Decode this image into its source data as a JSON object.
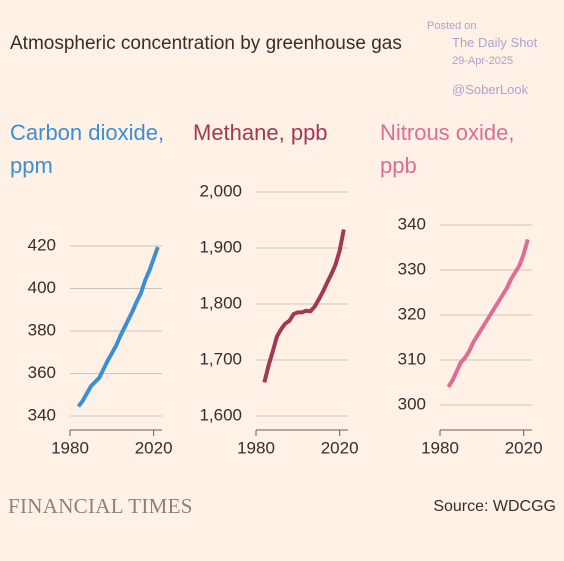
{
  "title": "Atmospheric concentration by greenhouse gas",
  "watermark": {
    "posted": "Posted on",
    "site": "The Daily Shot",
    "date": "29-Apr-2025",
    "handle": "@SoberLook"
  },
  "brand": "FINANCIAL TIMES",
  "source": "Source: WDCGG",
  "chart_data": [
    {
      "type": "line",
      "title": "Carbon dioxide, ppm",
      "color": "#3d8fd1",
      "x": [
        1984,
        1986,
        1988,
        1990,
        1992,
        1994,
        1996,
        1998,
        2000,
        2002,
        2004,
        2006,
        2008,
        2010,
        2012,
        2014,
        2016,
        2018,
        2020,
        2022
      ],
      "values": [
        344.5,
        347,
        350.5,
        354,
        356,
        358,
        362,
        366,
        369.5,
        373,
        377.5,
        381.5,
        385.5,
        389.5,
        394,
        398,
        404,
        408.5,
        414,
        419.5
      ],
      "xlim": [
        1980,
        2024
      ],
      "xticks": [
        1980,
        2020
      ],
      "ylim": [
        340,
        420
      ],
      "yticks": [
        340,
        360,
        380,
        400,
        420
      ],
      "grid": true
    },
    {
      "type": "line",
      "title": "Methane, ppb",
      "color": "#a23856",
      "x": [
        1984,
        1986,
        1988,
        1990,
        1992,
        1994,
        1996,
        1998,
        2000,
        2002,
        2004,
        2006,
        2008,
        2010,
        2012,
        2014,
        2016,
        2018,
        2020,
        2022
      ],
      "values": [
        1660,
        1690,
        1715,
        1742,
        1755,
        1765,
        1770,
        1782,
        1785,
        1785,
        1788,
        1787,
        1795,
        1808,
        1822,
        1838,
        1853,
        1870,
        1895,
        1933
      ],
      "xlim": [
        1980,
        2024
      ],
      "xticks": [
        1980,
        2020
      ],
      "ylim": [
        1600,
        2000
      ],
      "yticks": [
        {
          "value": 1600,
          "label": "1,600"
        },
        {
          "value": 1700,
          "label": "1,700"
        },
        {
          "value": 1800,
          "label": "1,800"
        },
        {
          "value": 1900,
          "label": "1,900"
        },
        {
          "value": 2000,
          "label": "2,000"
        }
      ],
      "grid": true
    },
    {
      "type": "line",
      "title": "Nitrous oxide, ppb",
      "color": "#e06b95",
      "x": [
        1984,
        1986,
        1988,
        1990,
        1992,
        1994,
        1996,
        1998,
        2000,
        2002,
        2004,
        2006,
        2008,
        2010,
        2012,
        2014,
        2016,
        2018,
        2020,
        2022
      ],
      "values": [
        304,
        305.5,
        307.5,
        309.5,
        310.5,
        312,
        314,
        315.5,
        317,
        318.5,
        320,
        321.5,
        323,
        324.5,
        326,
        328,
        329.5,
        331,
        333.5,
        336.8
      ],
      "xlim": [
        1980,
        2024
      ],
      "xticks": [
        1980,
        2020
      ],
      "ylim": [
        300,
        340
      ],
      "yticks": [
        300,
        310,
        320,
        330,
        340
      ],
      "grid": true
    }
  ]
}
